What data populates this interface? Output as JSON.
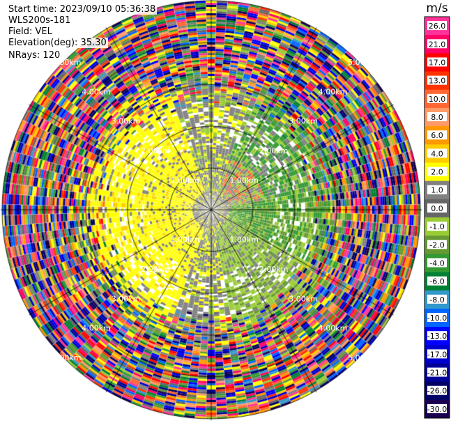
{
  "header": {
    "start_label": "Start time: 2023/09/10 05:36:38",
    "instrument": "WLS200s-181",
    "field_label": "Field: VEL",
    "elevation_label": "Elevation(deg): 35.30",
    "nrays_label": "NRays: 120"
  },
  "chart_data": {
    "type": "heatmap",
    "projection": "polar-ppi",
    "units": "m/s",
    "range_rings_km": [
      1.0,
      2.0,
      3.0,
      4.0,
      5.0
    ],
    "range_ring_labels": [
      "1.00km",
      "2.00km",
      "3.00km",
      "4.00km",
      "5.00km"
    ],
    "nrays": 120,
    "max_range_km": 5.4,
    "colorbar": {
      "label": "m/s",
      "ticks": [
        "26.0",
        "21.0",
        "17.0",
        "13.0",
        "10.0",
        "8.0",
        "6.0",
        "4.0",
        "2.0",
        "1.0",
        "0.0",
        "-1.0",
        "-2.0",
        "-4.0",
        "-6.0",
        "-8.0",
        "-10.0",
        "-13.0",
        "-17.0",
        "-21.0",
        "-26.0",
        "-30.0"
      ],
      "colors": [
        "#ff3399",
        "#ff0066",
        "#ff0000",
        "#ff3300",
        "#ff6633",
        "#ff9966",
        "#ff9900",
        "#ffcc00",
        "#ffff00",
        "#808080",
        "#666666",
        "#99cc33",
        "#669933",
        "#339933",
        "#008033",
        "#3399cc",
        "#0066ff",
        "#0000ff",
        "#0000cc",
        "#000099",
        "#000066",
        "#1a0050"
      ]
    }
  }
}
